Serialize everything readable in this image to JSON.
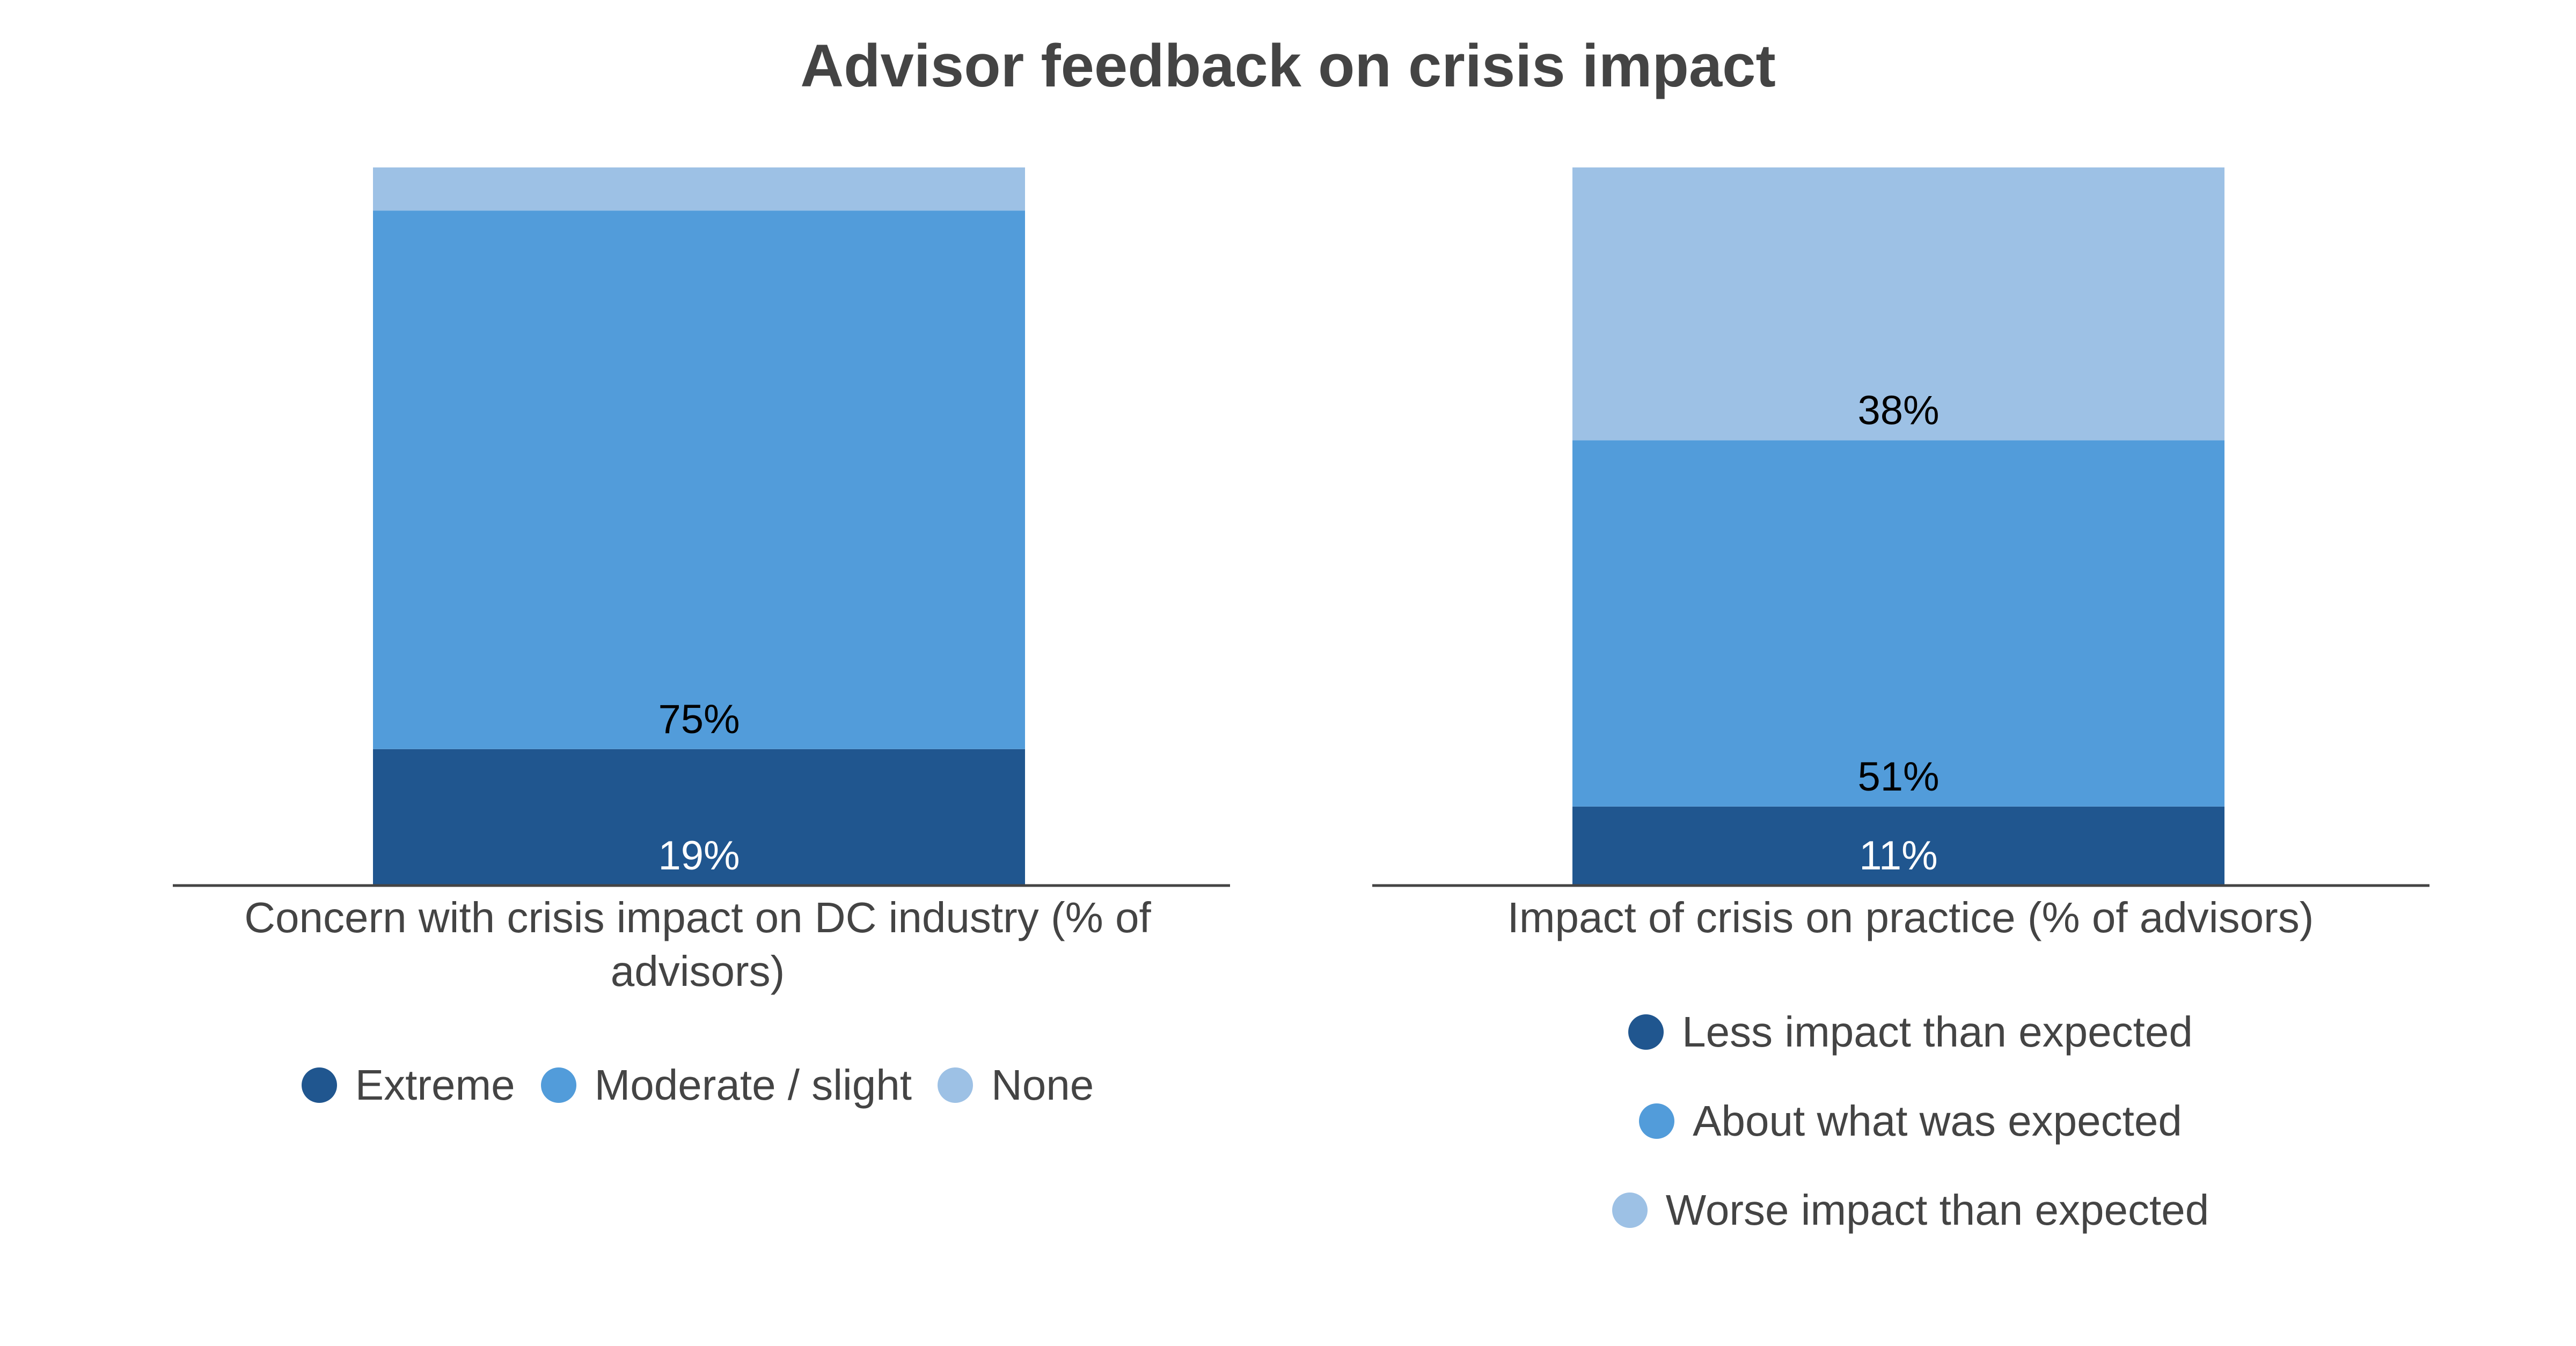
{
  "title": "Advisor feedback on crisis impact",
  "colors": {
    "dark": "#20568f",
    "mid": "#529cda",
    "light": "#9dc1e5",
    "axis": "#444444"
  },
  "chart_data": [
    {
      "type": "bar",
      "stacked": true,
      "xlabel": "Concern with crisis impact on DC industry (% of advisors)",
      "ylim": [
        0,
        100
      ],
      "legend_placement": "bottom",
      "series": [
        {
          "name": "Extreme",
          "value": 19,
          "label": "19%",
          "color": "#20568f"
        },
        {
          "name": "Moderate / slight",
          "value": 75,
          "label": "75%",
          "color": "#529cda"
        },
        {
          "name": "None",
          "value": 6,
          "label": "",
          "color": "#9dc1e5"
        }
      ]
    },
    {
      "type": "bar",
      "stacked": true,
      "xlabel": "Impact of crisis on practice (% of advisors)",
      "ylim": [
        0,
        100
      ],
      "legend_placement": "bottom",
      "series": [
        {
          "name": "Less impact than expected",
          "value": 11,
          "label": "11%",
          "color": "#20568f"
        },
        {
          "name": "About what was expected",
          "value": 51,
          "label": "51%",
          "color": "#529cda"
        },
        {
          "name": "Worse impact than expected",
          "value": 38,
          "label": "38%",
          "color": "#9dc1e5"
        }
      ]
    }
  ]
}
